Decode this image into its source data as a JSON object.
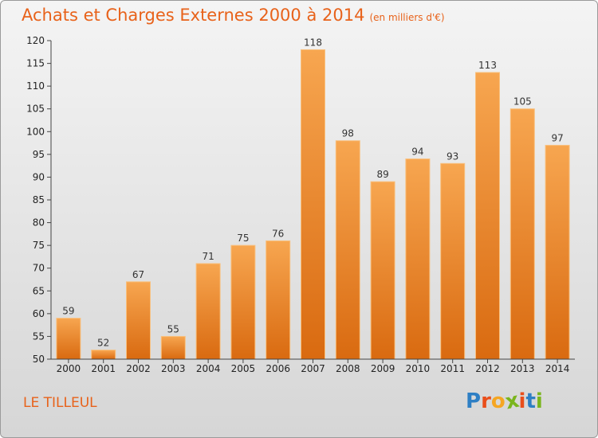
{
  "header": {
    "title": "Achats et Charges Externes 2000 à 2014",
    "subtitle": "(en milliers d'€)"
  },
  "footer": {
    "commune": "LE TILLEUL",
    "brand_letters": [
      "P",
      "r",
      "o",
      "x",
      "i",
      "t",
      "i"
    ],
    "brand_colors": [
      "#2e7fc4",
      "#e94e1b",
      "#f5a623",
      "#7ab51d",
      "#e94e1b",
      "#2e7fc4",
      "#7ab51d"
    ]
  },
  "chart_data": {
    "type": "bar",
    "title": "Achats et Charges Externes 2000 à 2014",
    "subtitle": "(en milliers d'€)",
    "xlabel": "",
    "ylabel": "",
    "categories": [
      "2000",
      "2001",
      "2002",
      "2003",
      "2004",
      "2005",
      "2006",
      "2007",
      "2008",
      "2009",
      "2010",
      "2011",
      "2012",
      "2013",
      "2014"
    ],
    "values": [
      59,
      52,
      67,
      55,
      71,
      75,
      76,
      118,
      98,
      89,
      94,
      93,
      113,
      105,
      97
    ],
    "ylim": [
      50,
      120
    ],
    "yticks": [
      50,
      55,
      60,
      65,
      70,
      75,
      80,
      85,
      90,
      95,
      100,
      105,
      110,
      115,
      120
    ],
    "grid": false,
    "bar_color_top": "#f7a650",
    "bar_color_bottom": "#d96a10",
    "bar_edge": "#f9c07d",
    "axis_color": "#444444"
  }
}
